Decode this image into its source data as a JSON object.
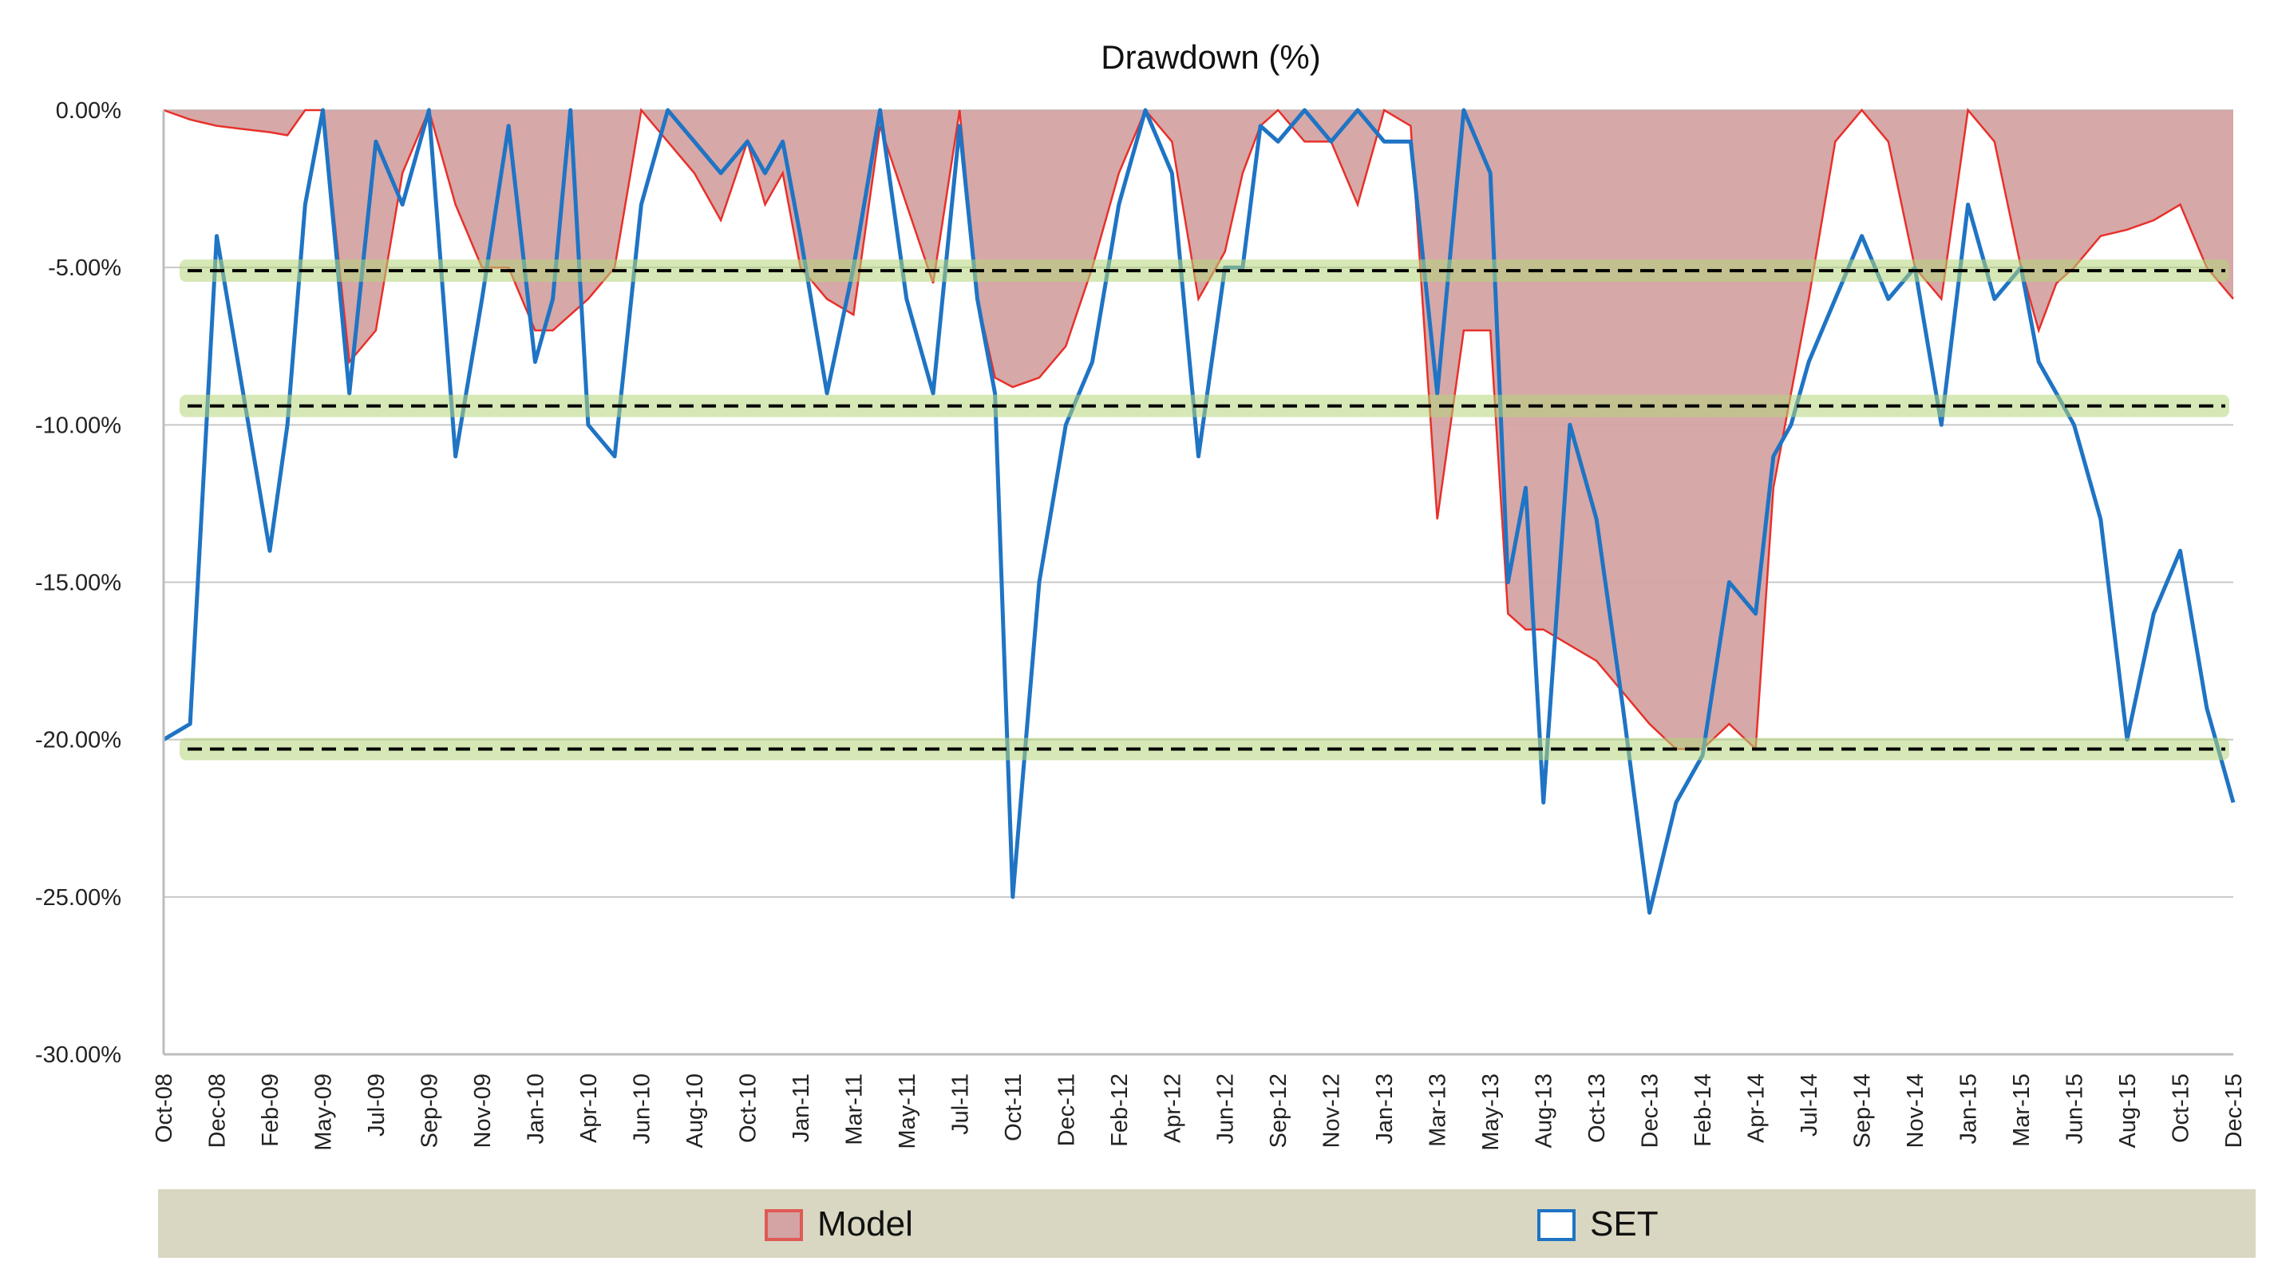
{
  "chart_data": {
    "type": "area",
    "title": "Drawdown (%)",
    "xlabel": "",
    "ylabel": "",
    "ylim": [
      -30,
      0
    ],
    "yticks": [
      "0.00%",
      "-5.00%",
      "-10.00%",
      "-15.00%",
      "-20.00%",
      "-25.00%",
      "-30.00%"
    ],
    "ytick_values": [
      0,
      -5,
      -10,
      -15,
      -20,
      -25,
      -30
    ],
    "grid": true,
    "legend_position": "bottom",
    "x_tick_labels": [
      "Oct-08",
      "Dec-08",
      "Feb-09",
      "May-09",
      "Jul-09",
      "Sep-09",
      "Nov-09",
      "Jan-10",
      "Apr-10",
      "Jun-10",
      "Aug-10",
      "Oct-10",
      "Jan-11",
      "Mar-11",
      "May-11",
      "Jul-11",
      "Oct-11",
      "Dec-11",
      "Feb-12",
      "Apr-12",
      "Jun-12",
      "Sep-12",
      "Nov-12",
      "Jan-13",
      "Mar-13",
      "May-13",
      "Aug-13",
      "Oct-13",
      "Dec-13",
      "Feb-14",
      "Apr-14",
      "Jul-14",
      "Sep-14",
      "Nov-14",
      "Jan-15",
      "Mar-15",
      "Jun-15",
      "Aug-15",
      "Oct-15",
      "Dec-15"
    ],
    "x": [
      "Oct-08",
      "Nov-08",
      "Dec-08",
      "Jan-09",
      "Feb-09",
      "Mar-09",
      "Apr-09",
      "May-09",
      "Jun-09",
      "Jul-09",
      "Aug-09",
      "Sep-09",
      "Oct-09",
      "Nov-09",
      "Dec-09",
      "Jan-10",
      "Feb-10",
      "Mar-10",
      "Apr-10",
      "May-10",
      "Jun-10",
      "Jul-10",
      "Aug-10",
      "Sep-10",
      "Oct-10",
      "Nov-10",
      "Dec-10",
      "Jan-11",
      "Feb-11",
      "Mar-11",
      "Apr-11",
      "May-11",
      "Jun-11",
      "Jul-11",
      "Aug-11",
      "Sep-11",
      "Oct-11",
      "Nov-11",
      "Dec-11",
      "Jan-12",
      "Feb-12",
      "Mar-12",
      "Apr-12",
      "May-12",
      "Jun-12",
      "Jul-12",
      "Aug-12",
      "Sep-12",
      "Oct-12",
      "Nov-12",
      "Dec-12",
      "Jan-13",
      "Feb-13",
      "Mar-13",
      "Apr-13",
      "May-13",
      "Jun-13",
      "Jul-13",
      "Aug-13",
      "Sep-13",
      "Oct-13",
      "Nov-13",
      "Dec-13",
      "Jan-14",
      "Feb-14",
      "Mar-14",
      "Apr-14",
      "May-14",
      "Jun-14",
      "Jul-14",
      "Aug-14",
      "Sep-14",
      "Oct-14",
      "Nov-14",
      "Dec-14",
      "Jan-15",
      "Feb-15",
      "Mar-15",
      "Apr-15",
      "May-15",
      "Jun-15",
      "Jul-15",
      "Aug-15",
      "Sep-15",
      "Oct-15",
      "Nov-15",
      "Dec-15"
    ],
    "series": [
      {
        "name": "Model",
        "style": "area",
        "fill_color": "#d4a3a3",
        "line_color": "#e8302a",
        "values": [
          0,
          -0.3,
          -0.5,
          -0.6,
          -0.7,
          -0.8,
          0,
          0,
          -8,
          -7,
          -2,
          0,
          -3,
          -5,
          -5,
          -7,
          -7,
          -6.5,
          -6,
          -5,
          0,
          -1,
          -2,
          -3.5,
          -1,
          -3,
          -2,
          -5,
          -6,
          -6.5,
          -0.5,
          -3,
          -5.5,
          0,
          -6,
          -8.5,
          -8.8,
          -8.5,
          -7.5,
          -5,
          -2,
          0,
          -1,
          -6,
          -4.5,
          -2,
          -0.5,
          0,
          -1,
          -1,
          -3,
          0,
          -0.5,
          -13,
          -7,
          -7,
          -16,
          -16.5,
          -16.5,
          -17,
          -17.5,
          -18.5,
          -19.5,
          -20.3,
          -20.3,
          -19.5,
          -20.3,
          -12,
          -9,
          -6,
          -1,
          0,
          -1,
          -5,
          -6,
          0,
          -1,
          -5,
          -7,
          -5.5,
          -5,
          -4,
          -3.8,
          -3.5,
          -3,
          -5,
          -6
        ]
      },
      {
        "name": "SET",
        "style": "line",
        "line_color": "#1f74c4",
        "values": [
          -20,
          -19.5,
          -4,
          -9,
          -14,
          -10,
          -3,
          0,
          -9,
          -1,
          -3,
          0,
          -11,
          -6,
          -0.5,
          -8,
          -6,
          0,
          -10,
          -11,
          -3,
          0,
          -1,
          -2,
          -1,
          -2,
          -1,
          -4,
          -9,
          -5,
          0,
          -6,
          -9,
          -0.5,
          -6,
          -9,
          -25,
          -15,
          -10,
          -8,
          -3,
          0,
          -2,
          -11,
          -5,
          -5,
          -0.5,
          -1,
          0,
          -1,
          0,
          -1,
          -1,
          -9,
          0,
          -2,
          -15,
          -12,
          -22,
          -10,
          -13,
          -19,
          -25.5,
          -22,
          -20.5,
          -15,
          -16,
          -11,
          -10,
          -8,
          -6,
          -4,
          -6,
          -5,
          -10,
          -3,
          -6,
          -5,
          -8,
          -9,
          -10,
          -13,
          -20,
          -16,
          -14,
          -19,
          -22
        ]
      }
    ],
    "reference_lines": [
      {
        "y": -5.1,
        "style": "dashed",
        "color": "#000000",
        "highlight": "#b5d67a"
      },
      {
        "y": -9.4,
        "style": "dashed",
        "color": "#000000",
        "highlight": "#b5d67a"
      },
      {
        "y": -20.3,
        "style": "dashed",
        "color": "#000000",
        "highlight": "#b5d67a"
      }
    ],
    "legend": {
      "background": "#d9d7c1",
      "entries": [
        {
          "label": "Model",
          "swatch": "filled-square"
        },
        {
          "label": "SET",
          "swatch": "outlined-square"
        }
      ]
    }
  }
}
